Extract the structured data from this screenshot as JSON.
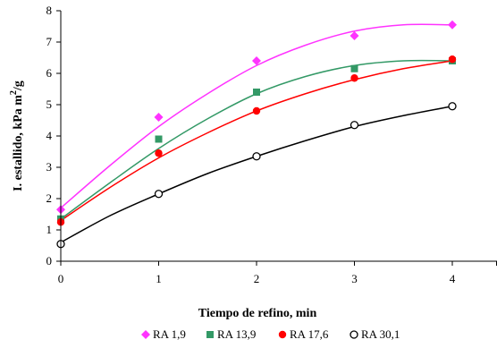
{
  "chart_data": {
    "type": "scatter",
    "xlabel": "Tiempo de refino, min",
    "ylabel_main": "I. estallido, kPa m",
    "ylabel_sup": "2",
    "ylabel_tail": "/g",
    "xlim": [
      0,
      4.5
    ],
    "ylim": [
      0,
      8
    ],
    "x_ticks": [
      0,
      1,
      2,
      3,
      4
    ],
    "x_tick_labels": [
      "0",
      "1",
      "2",
      "3",
      "4"
    ],
    "y_ticks": [
      0,
      1,
      2,
      3,
      4,
      5,
      6,
      7,
      8
    ],
    "y_tick_labels": [
      "0",
      "1",
      "2",
      "3",
      "4",
      "5",
      "6",
      "7",
      "8"
    ],
    "grid": false,
    "legend_position": "bottom",
    "x": [
      0,
      1,
      2,
      3,
      4
    ],
    "series": [
      {
        "name": "RA 1,9",
        "marker": "diamond",
        "color": "#ff33ff",
        "values": [
          1.65,
          4.6,
          6.4,
          7.2,
          7.55
        ],
        "fit": [
          [
            0,
            1.7
          ],
          [
            0.5,
            3.05
          ],
          [
            1,
            4.3
          ],
          [
            1.5,
            5.35
          ],
          [
            2,
            6.25
          ],
          [
            2.5,
            6.9
          ],
          [
            3,
            7.35
          ],
          [
            3.5,
            7.55
          ],
          [
            4,
            7.55
          ]
        ]
      },
      {
        "name": "RA 13,9",
        "marker": "square",
        "color": "#339966",
        "values": [
          1.35,
          3.9,
          5.4,
          6.15,
          6.4
        ],
        "fit": [
          [
            0,
            1.35
          ],
          [
            0.5,
            2.5
          ],
          [
            1,
            3.6
          ],
          [
            1.5,
            4.55
          ],
          [
            2,
            5.35
          ],
          [
            2.5,
            5.9
          ],
          [
            3,
            6.25
          ],
          [
            3.5,
            6.4
          ],
          [
            4,
            6.4
          ]
        ]
      },
      {
        "name": "RA 17,6",
        "marker": "circle",
        "color": "#ff0000",
        "values": [
          1.25,
          3.45,
          4.8,
          5.85,
          6.45
        ],
        "fit": [
          [
            0,
            1.3
          ],
          [
            0.5,
            2.35
          ],
          [
            1,
            3.3
          ],
          [
            1.5,
            4.1
          ],
          [
            2,
            4.8
          ],
          [
            2.5,
            5.35
          ],
          [
            3,
            5.8
          ],
          [
            3.5,
            6.15
          ],
          [
            4,
            6.4
          ]
        ]
      },
      {
        "name": "RA 30,1",
        "marker": "open-circle",
        "color": "#000000",
        "values": [
          0.55,
          2.15,
          3.35,
          4.35,
          4.95
        ],
        "fit": [
          [
            0,
            0.6
          ],
          [
            0.5,
            1.45
          ],
          [
            1,
            2.15
          ],
          [
            1.5,
            2.8
          ],
          [
            2,
            3.35
          ],
          [
            2.5,
            3.85
          ],
          [
            3,
            4.3
          ],
          [
            3.5,
            4.65
          ],
          [
            4,
            4.95
          ]
        ]
      }
    ]
  }
}
